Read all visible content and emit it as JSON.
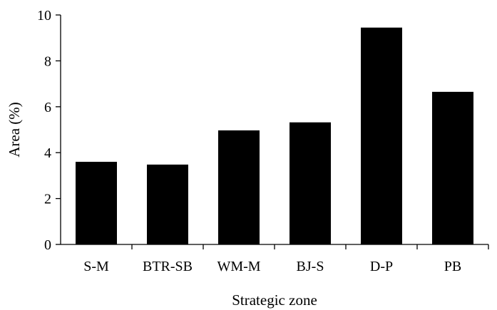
{
  "chart_data": {
    "type": "bar",
    "title": "",
    "xlabel": "Strategic zone",
    "ylabel": "Area (%)",
    "categories": [
      "S-M",
      "BTR-SB",
      "WM-M",
      "BJ-S",
      "D-P",
      "PB"
    ],
    "values": [
      3.6,
      3.48,
      4.97,
      5.32,
      9.45,
      6.65
    ],
    "ylim": [
      0,
      10
    ],
    "yticks": [
      "0",
      "2",
      "4",
      "6",
      "8",
      "10"
    ],
    "grid": false,
    "legend": "none",
    "bar_color": "#000000"
  }
}
